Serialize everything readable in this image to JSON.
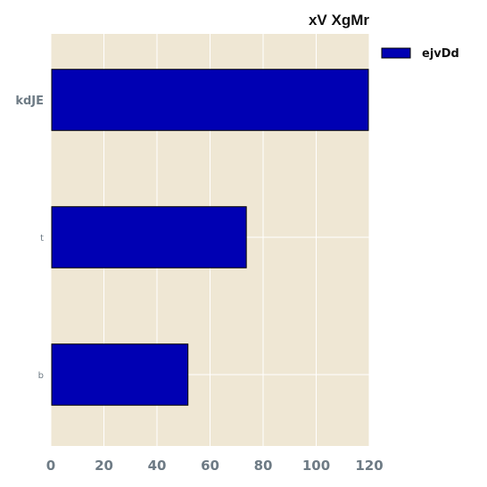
{
  "chart_data": {
    "type": "bar",
    "orientation": "horizontal",
    "title": "xV XgMr",
    "xlabel": "",
    "ylabel": "",
    "categories": [
      "kdJE",
      "t",
      "b"
    ],
    "series": [
      {
        "name": "ejvDd",
        "values": [
          120,
          74,
          52
        ],
        "color": "#0000b3"
      }
    ],
    "xlim": [
      0,
      120
    ],
    "xticks": [
      "0",
      "20",
      "40",
      "60",
      "80",
      "100",
      "120"
    ],
    "grid": true,
    "legend_position": "top-right outside",
    "plot_background": "#efe7d4",
    "grid_color": "#ffffff",
    "tick_label_color": "#6e7b85"
  }
}
